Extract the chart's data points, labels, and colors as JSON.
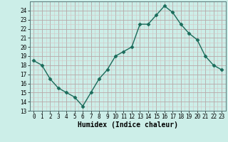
{
  "x": [
    0,
    1,
    2,
    3,
    4,
    5,
    6,
    7,
    8,
    9,
    10,
    11,
    12,
    13,
    14,
    15,
    16,
    17,
    18,
    19,
    20,
    21,
    22,
    23
  ],
  "y": [
    18.5,
    18.0,
    16.5,
    15.5,
    15.0,
    14.5,
    13.5,
    15.0,
    16.5,
    17.5,
    19.0,
    19.5,
    20.0,
    22.5,
    22.5,
    23.5,
    24.5,
    23.8,
    22.5,
    21.5,
    20.8,
    19.0,
    18.0,
    17.5
  ],
  "xlabel": "Humidex (Indice chaleur)",
  "ylim": [
    13,
    25
  ],
  "xlim": [
    -0.5,
    23.5
  ],
  "yticks": [
    13,
    14,
    15,
    16,
    17,
    18,
    19,
    20,
    21,
    22,
    23,
    24
  ],
  "xticks": [
    0,
    1,
    2,
    3,
    4,
    5,
    6,
    7,
    8,
    9,
    10,
    11,
    12,
    13,
    14,
    15,
    16,
    17,
    18,
    19,
    20,
    21,
    22,
    23
  ],
  "line_color": "#1a6b5a",
  "marker": "D",
  "marker_size": 2.5,
  "bg_color": "#cceee8",
  "grid_major_color": "#b8a8a8",
  "grid_minor_color": "#d4c4c4",
  "tick_label_fontsize": 5.5,
  "xlabel_fontsize": 7,
  "line_width": 1.0
}
